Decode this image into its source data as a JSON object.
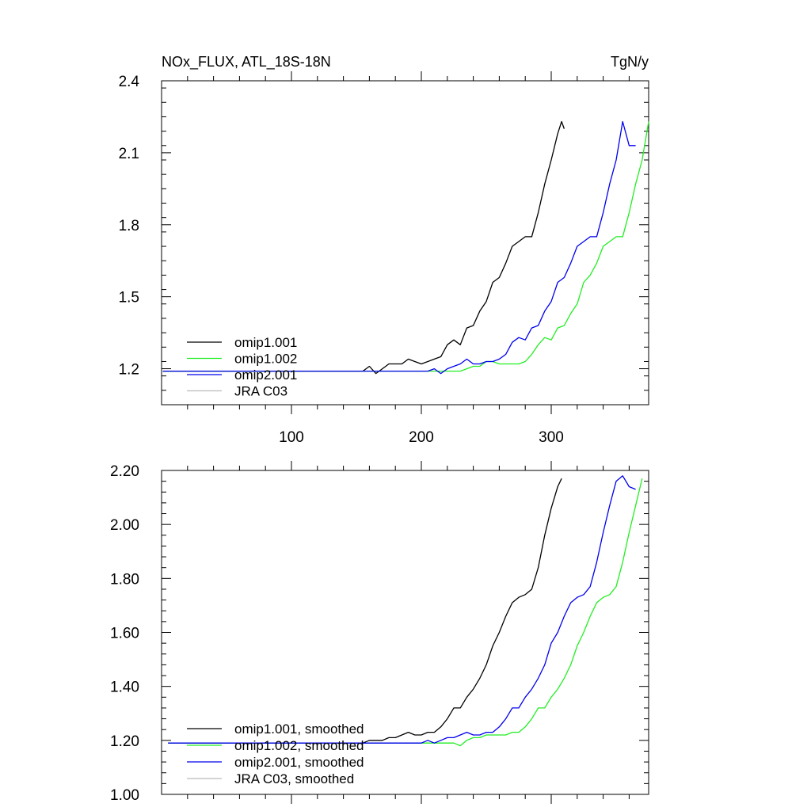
{
  "header": {
    "left_title": "NOx_FLUX, ATL_18S-18N",
    "right_title": "TgN/y"
  },
  "colors": {
    "omip1.001": "#000000",
    "omip1.002": "#22ee22",
    "omip2.001": "#0000ee",
    "JRA C03": "#bbbbbb",
    "axis": "#000000"
  },
  "chart_data": [
    {
      "type": "line",
      "xlim": [
        0,
        375
      ],
      "ylim": [
        1.05,
        2.4
      ],
      "x_ticks": [
        100,
        200,
        300
      ],
      "x_tick_labels": [
        "100",
        "200",
        "300"
      ],
      "y_ticks": [
        1.2,
        1.5,
        1.8,
        2.1,
        2.4
      ],
      "y_tick_labels": [
        "1.2",
        "1.5",
        "1.8",
        "2.1",
        "2.4"
      ],
      "grid": false,
      "legend_position": "bottom-left",
      "series": [
        {
          "name": "omip1.001",
          "color": "#000000",
          "x": [
            1,
            150,
            155,
            160,
            165,
            170,
            175,
            180,
            185,
            190,
            195,
            200,
            205,
            210,
            215,
            220,
            225,
            230,
            235,
            240,
            245,
            250,
            255,
            260,
            265,
            270,
            275,
            280,
            285,
            290,
            295,
            300,
            305,
            308,
            310
          ],
          "y": [
            1.19,
            1.19,
            1.19,
            1.21,
            1.18,
            1.2,
            1.22,
            1.22,
            1.22,
            1.24,
            1.23,
            1.22,
            1.23,
            1.24,
            1.25,
            1.3,
            1.32,
            1.3,
            1.37,
            1.38,
            1.44,
            1.48,
            1.56,
            1.58,
            1.64,
            1.71,
            1.73,
            1.75,
            1.75,
            1.85,
            1.97,
            2.07,
            2.18,
            2.23,
            2.2
          ]
        },
        {
          "name": "omip1.002",
          "color": "#22ee22",
          "x": [
            1,
            225,
            230,
            235,
            240,
            245,
            250,
            255,
            260,
            265,
            270,
            275,
            280,
            285,
            290,
            295,
            300,
            305,
            310,
            315,
            320,
            325,
            330,
            335,
            340,
            345,
            350,
            355,
            360,
            365,
            370,
            375
          ],
          "y": [
            1.19,
            1.19,
            1.19,
            1.2,
            1.21,
            1.21,
            1.23,
            1.23,
            1.22,
            1.22,
            1.22,
            1.22,
            1.23,
            1.26,
            1.3,
            1.33,
            1.32,
            1.37,
            1.38,
            1.43,
            1.47,
            1.56,
            1.59,
            1.64,
            1.71,
            1.73,
            1.75,
            1.75,
            1.85,
            1.97,
            2.07,
            2.23
          ]
        },
        {
          "name": "omip2.001",
          "color": "#0000ee",
          "x": [
            1,
            205,
            210,
            215,
            220,
            225,
            230,
            235,
            240,
            245,
            250,
            255,
            260,
            265,
            270,
            275,
            280,
            285,
            290,
            295,
            300,
            305,
            310,
            315,
            320,
            325,
            330,
            335,
            340,
            345,
            350,
            355,
            360,
            365
          ],
          "y": [
            1.19,
            1.19,
            1.2,
            1.18,
            1.2,
            1.21,
            1.22,
            1.24,
            1.22,
            1.22,
            1.23,
            1.23,
            1.24,
            1.26,
            1.31,
            1.33,
            1.32,
            1.37,
            1.38,
            1.44,
            1.48,
            1.56,
            1.58,
            1.64,
            1.71,
            1.73,
            1.75,
            1.75,
            1.85,
            1.97,
            2.07,
            2.23,
            2.13,
            2.13
          ]
        },
        {
          "name": "JRA C03",
          "color": "#bbbbbb",
          "x": [],
          "y": []
        }
      ]
    },
    {
      "type": "line",
      "xlim": [
        0,
        375
      ],
      "ylim": [
        1.0,
        2.2
      ],
      "x_ticks": [
        100,
        200,
        300
      ],
      "x_tick_labels": [
        "",
        "",
        ""
      ],
      "y_ticks": [
        1.0,
        1.2,
        1.4,
        1.6,
        1.8,
        2.0,
        2.2
      ],
      "y_tick_labels": [
        "1.00",
        "1.20",
        "1.40",
        "1.60",
        "1.80",
        "2.00",
        "2.20"
      ],
      "grid": false,
      "legend_position": "bottom-left",
      "series": [
        {
          "name": "omip1.001, smoothed",
          "color": "#000000",
          "x": [
            5,
            150,
            155,
            160,
            165,
            170,
            175,
            180,
            185,
            190,
            195,
            200,
            205,
            210,
            215,
            220,
            225,
            230,
            235,
            240,
            245,
            250,
            255,
            260,
            265,
            270,
            275,
            280,
            285,
            290,
            295,
            300,
            305,
            308
          ],
          "y": [
            1.19,
            1.19,
            1.19,
            1.2,
            1.2,
            1.2,
            1.21,
            1.21,
            1.22,
            1.23,
            1.22,
            1.22,
            1.23,
            1.23,
            1.25,
            1.28,
            1.32,
            1.32,
            1.36,
            1.39,
            1.43,
            1.48,
            1.55,
            1.6,
            1.66,
            1.71,
            1.73,
            1.74,
            1.76,
            1.84,
            1.96,
            2.06,
            2.14,
            2.17
          ]
        },
        {
          "name": "omip1.002, smoothed",
          "color": "#22ee22",
          "x": [
            5,
            220,
            225,
            230,
            235,
            240,
            245,
            250,
            255,
            260,
            265,
            270,
            275,
            280,
            285,
            290,
            295,
            300,
            305,
            310,
            315,
            320,
            325,
            330,
            335,
            340,
            345,
            350,
            355,
            360,
            365,
            370
          ],
          "y": [
            1.19,
            1.19,
            1.19,
            1.18,
            1.2,
            1.21,
            1.21,
            1.22,
            1.22,
            1.22,
            1.22,
            1.23,
            1.23,
            1.25,
            1.28,
            1.32,
            1.32,
            1.36,
            1.39,
            1.43,
            1.48,
            1.55,
            1.6,
            1.66,
            1.71,
            1.73,
            1.74,
            1.77,
            1.86,
            1.97,
            2.07,
            2.17
          ]
        },
        {
          "name": "omip2.001, smoothed",
          "color": "#0000ee",
          "x": [
            5,
            200,
            205,
            210,
            215,
            220,
            225,
            230,
            235,
            240,
            245,
            250,
            255,
            260,
            265,
            270,
            275,
            280,
            285,
            290,
            295,
            300,
            305,
            310,
            315,
            320,
            325,
            330,
            335,
            340,
            345,
            350,
            355,
            360,
            365
          ],
          "y": [
            1.19,
            1.19,
            1.2,
            1.19,
            1.2,
            1.21,
            1.21,
            1.22,
            1.23,
            1.22,
            1.22,
            1.23,
            1.23,
            1.25,
            1.28,
            1.32,
            1.32,
            1.36,
            1.39,
            1.43,
            1.48,
            1.56,
            1.6,
            1.66,
            1.71,
            1.73,
            1.74,
            1.77,
            1.86,
            1.97,
            2.07,
            2.16,
            2.18,
            2.14,
            2.13
          ]
        },
        {
          "name": "JRA C03, smoothed",
          "color": "#bbbbbb",
          "x": [],
          "y": []
        }
      ]
    }
  ]
}
